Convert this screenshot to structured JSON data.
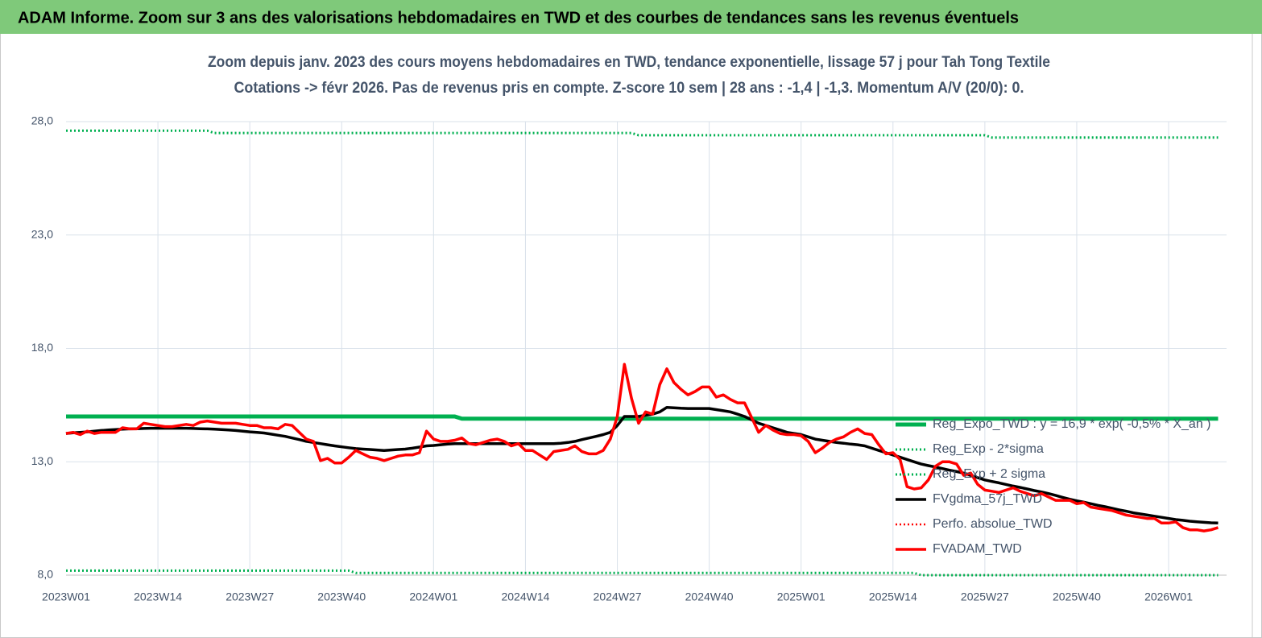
{
  "chart_data": {
    "type": "line",
    "title": "ADAM Informe. Zoom sur 3 ans des valorisations hebdomadaires en TWD et des courbes de tendances sans les revenus éventuels",
    "subtitle": [
      "Zoom depuis janv. 2023 des cours moyens hebdomadaires en TWD, tendance exponentielle, lissage 57 j pour Tah Tong Textile",
      "Cotations -> févr 2026.  Pas de revenus pris en compte. Z-score 10 sem | 28 ans : -1,4 | -1,3. Momentum A/V (20/0): 0."
    ],
    "ylim": [
      8,
      28
    ],
    "yticks": [
      {
        "value": 8,
        "label": "8,0"
      },
      {
        "value": 13,
        "label": "13,0"
      },
      {
        "value": 18,
        "label": "18,0"
      },
      {
        "value": 23,
        "label": "23,0"
      },
      {
        "value": 28,
        "label": "28,0"
      }
    ],
    "grid": true,
    "legend": "right",
    "categories": [
      "2023W01",
      null,
      null,
      null,
      null,
      null,
      null,
      null,
      null,
      null,
      null,
      null,
      null,
      "2023W14",
      null,
      null,
      null,
      null,
      null,
      null,
      null,
      null,
      null,
      null,
      null,
      null,
      "2023W27",
      null,
      null,
      null,
      null,
      null,
      null,
      null,
      null,
      null,
      null,
      null,
      null,
      "2023W40",
      null,
      null,
      null,
      null,
      null,
      null,
      null,
      null,
      null,
      null,
      null,
      null,
      "2024W01",
      null,
      null,
      null,
      null,
      null,
      null,
      null,
      null,
      null,
      null,
      null,
      null,
      "2024W14",
      null,
      null,
      null,
      null,
      null,
      null,
      null,
      null,
      null,
      null,
      null,
      null,
      "2024W27",
      null,
      null,
      null,
      null,
      null,
      null,
      null,
      null,
      null,
      null,
      null,
      null,
      "2024W40",
      null,
      null,
      null,
      null,
      null,
      null,
      null,
      null,
      null,
      null,
      null,
      null,
      "2025W01",
      null,
      null,
      null,
      null,
      null,
      null,
      null,
      null,
      null,
      null,
      null,
      null,
      "2025W14",
      null,
      null,
      null,
      null,
      null,
      null,
      null,
      null,
      null,
      null,
      null,
      null,
      "2025W27",
      null,
      null,
      null,
      null,
      null,
      null,
      null,
      null,
      null,
      null,
      null,
      null,
      "2025W40",
      null,
      null,
      null,
      null,
      null,
      null,
      null,
      null,
      null,
      null,
      null,
      null,
      "2026W01",
      null,
      null,
      null,
      null,
      null,
      null,
      null
    ],
    "series": [
      {
        "name": "Reg_Expo_TWD : y = 16,9 * exp( -0,5% * X_an )",
        "color": "#00b050",
        "style": "solid",
        "values": [
          15.0,
          15.0,
          15.0,
          15.0,
          15.0,
          15.0,
          15.0,
          15.0,
          15.0,
          15.0,
          15.0,
          15.0,
          15.0,
          15.0,
          15.0,
          15.0,
          15.0,
          15.0,
          15.0,
          15.0,
          15.0,
          15.0,
          15.0,
          15.0,
          15.0,
          15.0,
          15.0,
          15.0,
          15.0,
          15.0,
          15.0,
          15.0,
          15.0,
          15.0,
          15.0,
          15.0,
          15.0,
          15.0,
          15.0,
          15.0,
          15.0,
          15.0,
          15.0,
          15.0,
          15.0,
          15.0,
          15.0,
          15.0,
          15.0,
          15.0,
          15.0,
          15.0,
          15.0,
          15.0,
          15.0,
          15.0,
          14.9,
          14.9,
          14.9,
          14.9,
          14.9,
          14.9,
          14.9,
          14.9,
          14.9,
          14.9,
          14.9,
          14.9,
          14.9,
          14.9,
          14.9,
          14.9,
          14.9,
          14.9,
          14.9,
          14.9,
          14.9,
          14.9,
          14.9,
          14.9,
          14.9,
          14.9,
          14.9,
          14.9,
          14.9,
          14.9,
          14.9,
          14.9,
          14.9,
          14.9,
          14.9,
          14.9,
          14.9,
          14.9,
          14.9,
          14.9,
          14.9,
          14.9,
          14.9,
          14.9,
          14.9,
          14.9,
          14.9,
          14.9,
          14.9,
          14.9,
          14.9,
          14.9,
          14.9,
          14.9,
          14.9,
          14.9,
          14.9,
          14.9,
          14.9,
          14.9,
          14.9,
          14.9,
          14.9,
          14.9,
          14.9,
          14.9,
          14.9,
          14.9,
          14.9,
          14.9,
          14.9,
          14.9,
          14.9,
          14.9,
          14.9,
          14.9,
          14.9,
          14.9,
          14.9,
          14.9,
          14.9,
          14.9,
          14.9,
          14.9,
          14.9,
          14.9,
          14.9,
          14.9,
          14.9,
          14.9,
          14.9,
          14.9,
          14.9,
          14.9,
          14.9,
          14.9,
          14.9,
          14.9,
          14.9,
          14.9,
          14.9,
          14.9,
          14.9,
          14.9,
          14.9,
          14.9,
          14.9,
          14.9
        ]
      },
      {
        "name": "Reg_Exp - 2*sigma",
        "color": "#00b050",
        "style": "dotted",
        "values": [
          8.2,
          8.2,
          8.2,
          8.2,
          8.2,
          8.2,
          8.2,
          8.2,
          8.2,
          8.2,
          8.2,
          8.2,
          8.2,
          8.2,
          8.2,
          8.2,
          8.2,
          8.2,
          8.2,
          8.2,
          8.2,
          8.2,
          8.2,
          8.2,
          8.2,
          8.2,
          8.2,
          8.2,
          8.2,
          8.2,
          8.2,
          8.2,
          8.2,
          8.2,
          8.2,
          8.2,
          8.2,
          8.2,
          8.2,
          8.2,
          8.2,
          8.1,
          8.1,
          8.1,
          8.1,
          8.1,
          8.1,
          8.1,
          8.1,
          8.1,
          8.1,
          8.1,
          8.1,
          8.1,
          8.1,
          8.1,
          8.1,
          8.1,
          8.1,
          8.1,
          8.1,
          8.1,
          8.1,
          8.1,
          8.1,
          8.1,
          8.1,
          8.1,
          8.1,
          8.1,
          8.1,
          8.1,
          8.1,
          8.1,
          8.1,
          8.1,
          8.1,
          8.1,
          8.1,
          8.1,
          8.1,
          8.1,
          8.1,
          8.1,
          8.1,
          8.1,
          8.1,
          8.1,
          8.1,
          8.1,
          8.1,
          8.1,
          8.1,
          8.1,
          8.1,
          8.1,
          8.1,
          8.1,
          8.1,
          8.1,
          8.1,
          8.1,
          8.1,
          8.1,
          8.1,
          8.1,
          8.1,
          8.1,
          8.1,
          8.1,
          8.1,
          8.1,
          8.1,
          8.1,
          8.1,
          8.1,
          8.1,
          8.1,
          8.1,
          8.1,
          8.1,
          8.0,
          8.0,
          8.0,
          8.0,
          8.0,
          8.0,
          8.0,
          8.0,
          8.0,
          8.0,
          8.0,
          8.0,
          8.0,
          8.0,
          8.0,
          8.0,
          8.0,
          8.0,
          8.0,
          8.0,
          8.0,
          8.0,
          8.0,
          8.0,
          8.0,
          8.0,
          8.0,
          8.0,
          8.0,
          8.0,
          8.0,
          8.0,
          8.0,
          8.0,
          8.0,
          8.0,
          8.0,
          8.0,
          8.0,
          8.0,
          8.0,
          8.0,
          8.0
        ]
      },
      {
        "name": "Reg_Exp + 2 sigma",
        "color": "#00b050",
        "style": "dotted",
        "values": [
          27.6,
          27.6,
          27.6,
          27.6,
          27.6,
          27.6,
          27.6,
          27.6,
          27.6,
          27.6,
          27.6,
          27.6,
          27.6,
          27.6,
          27.6,
          27.6,
          27.6,
          27.6,
          27.6,
          27.6,
          27.6,
          27.5,
          27.5,
          27.5,
          27.5,
          27.5,
          27.5,
          27.5,
          27.5,
          27.5,
          27.5,
          27.5,
          27.5,
          27.5,
          27.5,
          27.5,
          27.5,
          27.5,
          27.5,
          27.5,
          27.5,
          27.5,
          27.5,
          27.5,
          27.5,
          27.5,
          27.5,
          27.5,
          27.5,
          27.5,
          27.5,
          27.5,
          27.5,
          27.5,
          27.5,
          27.5,
          27.5,
          27.5,
          27.5,
          27.5,
          27.5,
          27.5,
          27.5,
          27.5,
          27.5,
          27.5,
          27.5,
          27.5,
          27.5,
          27.5,
          27.5,
          27.5,
          27.5,
          27.5,
          27.5,
          27.5,
          27.5,
          27.5,
          27.5,
          27.5,
          27.5,
          27.4,
          27.4,
          27.4,
          27.4,
          27.4,
          27.4,
          27.4,
          27.4,
          27.4,
          27.4,
          27.4,
          27.4,
          27.4,
          27.4,
          27.4,
          27.4,
          27.4,
          27.4,
          27.4,
          27.4,
          27.4,
          27.4,
          27.4,
          27.4,
          27.4,
          27.4,
          27.4,
          27.4,
          27.4,
          27.4,
          27.4,
          27.4,
          27.4,
          27.4,
          27.4,
          27.4,
          27.4,
          27.4,
          27.4,
          27.4,
          27.4,
          27.4,
          27.4,
          27.4,
          27.4,
          27.4,
          27.4,
          27.4,
          27.4,
          27.4,
          27.3,
          27.3,
          27.3,
          27.3,
          27.3,
          27.3,
          27.3,
          27.3,
          27.3,
          27.3,
          27.3,
          27.3,
          27.3,
          27.3,
          27.3,
          27.3,
          27.3,
          27.3,
          27.3,
          27.3,
          27.3,
          27.3,
          27.3,
          27.3,
          27.3,
          27.3,
          27.3,
          27.3,
          27.3,
          27.3,
          27.3,
          27.3,
          27.3
        ]
      },
      {
        "name": "FVgdma_57j_TWD",
        "color": "#000000",
        "style": "solid",
        "values": [
          14.25,
          14.28,
          14.3,
          14.32,
          14.35,
          14.38,
          14.4,
          14.42,
          14.44,
          14.45,
          14.46,
          14.47,
          14.48,
          14.48,
          14.48,
          14.48,
          14.48,
          14.48,
          14.47,
          14.46,
          14.45,
          14.44,
          14.42,
          14.4,
          14.38,
          14.35,
          14.32,
          14.3,
          14.27,
          14.22,
          14.17,
          14.12,
          14.05,
          13.98,
          13.9,
          13.85,
          13.8,
          13.75,
          13.7,
          13.66,
          13.62,
          13.58,
          13.56,
          13.54,
          13.52,
          13.5,
          13.52,
          13.54,
          13.56,
          13.6,
          13.65,
          13.7,
          13.72,
          13.75,
          13.78,
          13.8,
          13.8,
          13.8,
          13.8,
          13.8,
          13.8,
          13.8,
          13.8,
          13.8,
          13.8,
          13.8,
          13.8,
          13.8,
          13.8,
          13.8,
          13.82,
          13.85,
          13.9,
          13.98,
          14.05,
          14.12,
          14.2,
          14.3,
          14.6,
          15.0,
          15.0,
          15.0,
          15.05,
          15.1,
          15.2,
          15.4,
          15.38,
          15.36,
          15.35,
          15.35,
          15.35,
          15.35,
          15.3,
          15.25,
          15.2,
          15.1,
          15.0,
          14.85,
          14.7,
          14.6,
          14.5,
          14.4,
          14.3,
          14.25,
          14.2,
          14.1,
          14.0,
          13.95,
          13.9,
          13.85,
          13.82,
          13.78,
          13.75,
          13.7,
          13.6,
          13.5,
          13.4,
          13.3,
          13.2,
          13.1,
          13.0,
          12.9,
          12.83,
          12.77,
          12.7,
          12.63,
          12.57,
          12.5,
          12.4,
          12.3,
          12.2,
          12.13,
          12.07,
          12.0,
          11.93,
          11.87,
          11.8,
          11.73,
          11.67,
          11.6,
          11.52,
          11.43,
          11.35,
          11.28,
          11.22,
          11.15,
          11.08,
          11.02,
          10.95,
          10.88,
          10.82,
          10.75,
          10.7,
          10.65,
          10.6,
          10.55,
          10.5,
          10.45,
          10.42,
          10.38,
          10.35,
          10.33,
          10.31,
          10.3
        ]
      },
      {
        "name": "Perfo. absolue_TWD",
        "color": "#ff0000",
        "style": "dotted",
        "values": [
          14.25,
          14.3,
          14.2,
          14.35,
          14.25,
          14.3,
          14.3,
          14.3,
          14.5,
          14.45,
          14.45,
          14.7,
          14.65,
          14.6,
          14.55,
          14.55,
          14.6,
          14.65,
          14.6,
          14.75,
          14.8,
          14.75,
          14.7,
          14.7,
          14.7,
          14.65,
          14.6,
          14.6,
          14.5,
          14.5,
          14.45,
          14.65,
          14.6,
          14.3,
          14.0,
          13.9,
          13.05,
          13.15,
          12.95,
          12.95,
          13.2,
          13.5,
          13.35,
          13.2,
          13.15,
          13.05,
          13.15,
          13.25,
          13.3,
          13.3,
          13.4,
          14.35,
          14.0,
          13.9,
          13.9,
          13.95,
          14.05,
          13.8,
          13.75,
          13.85,
          13.95,
          14.0,
          13.9,
          13.7,
          13.8,
          13.5,
          13.5,
          13.3,
          13.1,
          13.45,
          13.5,
          13.55,
          13.7,
          13.45,
          13.35,
          13.35,
          13.5,
          14.0,
          15.0,
          17.3,
          15.8,
          14.7,
          15.2,
          15.1,
          16.4,
          17.1,
          16.5,
          16.2,
          15.95,
          16.1,
          16.3,
          16.3,
          15.85,
          15.95,
          15.75,
          15.6,
          15.6,
          14.95,
          14.3,
          14.6,
          14.4,
          14.25,
          14.2,
          14.2,
          14.15,
          13.9,
          13.4,
          13.6,
          13.85,
          14.0,
          14.1,
          14.3,
          14.45,
          14.25,
          14.2,
          13.75,
          13.35,
          13.4,
          13.1,
          11.9,
          11.8,
          11.85,
          12.2,
          12.8,
          13.0,
          13.0,
          12.9,
          12.4,
          12.5,
          12.0,
          11.75,
          11.7,
          11.65,
          11.75,
          11.85,
          11.7,
          11.6,
          11.5,
          11.6,
          11.45,
          11.3,
          11.3,
          11.3,
          11.15,
          11.2,
          11.0,
          10.95,
          10.9,
          10.85,
          10.75,
          10.65,
          10.6,
          10.55,
          10.5,
          10.5,
          10.3,
          10.3,
          10.35,
          10.1,
          10.0,
          10.0,
          9.95,
          10.0,
          10.1
        ]
      },
      {
        "name": "FVADAM_TWD",
        "color": "#ff0000",
        "style": "solid",
        "values": [
          14.25,
          14.3,
          14.2,
          14.35,
          14.25,
          14.3,
          14.3,
          14.3,
          14.5,
          14.45,
          14.45,
          14.7,
          14.65,
          14.6,
          14.55,
          14.55,
          14.6,
          14.65,
          14.6,
          14.75,
          14.8,
          14.75,
          14.7,
          14.7,
          14.7,
          14.65,
          14.6,
          14.6,
          14.5,
          14.5,
          14.45,
          14.65,
          14.6,
          14.3,
          14.0,
          13.9,
          13.05,
          13.15,
          12.95,
          12.95,
          13.2,
          13.5,
          13.35,
          13.2,
          13.15,
          13.05,
          13.15,
          13.25,
          13.3,
          13.3,
          13.4,
          14.35,
          14.0,
          13.9,
          13.9,
          13.95,
          14.05,
          13.8,
          13.75,
          13.85,
          13.95,
          14.0,
          13.9,
          13.7,
          13.8,
          13.5,
          13.5,
          13.3,
          13.1,
          13.45,
          13.5,
          13.55,
          13.7,
          13.45,
          13.35,
          13.35,
          13.5,
          14.0,
          15.0,
          17.3,
          15.8,
          14.7,
          15.2,
          15.1,
          16.4,
          17.1,
          16.5,
          16.2,
          15.95,
          16.1,
          16.3,
          16.3,
          15.85,
          15.95,
          15.75,
          15.6,
          15.6,
          14.95,
          14.3,
          14.6,
          14.4,
          14.25,
          14.2,
          14.2,
          14.15,
          13.9,
          13.4,
          13.6,
          13.85,
          14.0,
          14.1,
          14.3,
          14.45,
          14.25,
          14.2,
          13.75,
          13.35,
          13.4,
          13.1,
          11.9,
          11.8,
          11.85,
          12.2,
          12.8,
          13.0,
          13.0,
          12.9,
          12.4,
          12.5,
          12.0,
          11.75,
          11.7,
          11.65,
          11.75,
          11.85,
          11.7,
          11.6,
          11.5,
          11.6,
          11.45,
          11.3,
          11.3,
          11.3,
          11.15,
          11.2,
          11.0,
          10.95,
          10.9,
          10.85,
          10.75,
          10.65,
          10.6,
          10.55,
          10.5,
          10.5,
          10.3,
          10.3,
          10.35,
          10.1,
          10.0,
          10.0,
          9.95,
          10.0,
          10.1
        ]
      }
    ]
  }
}
